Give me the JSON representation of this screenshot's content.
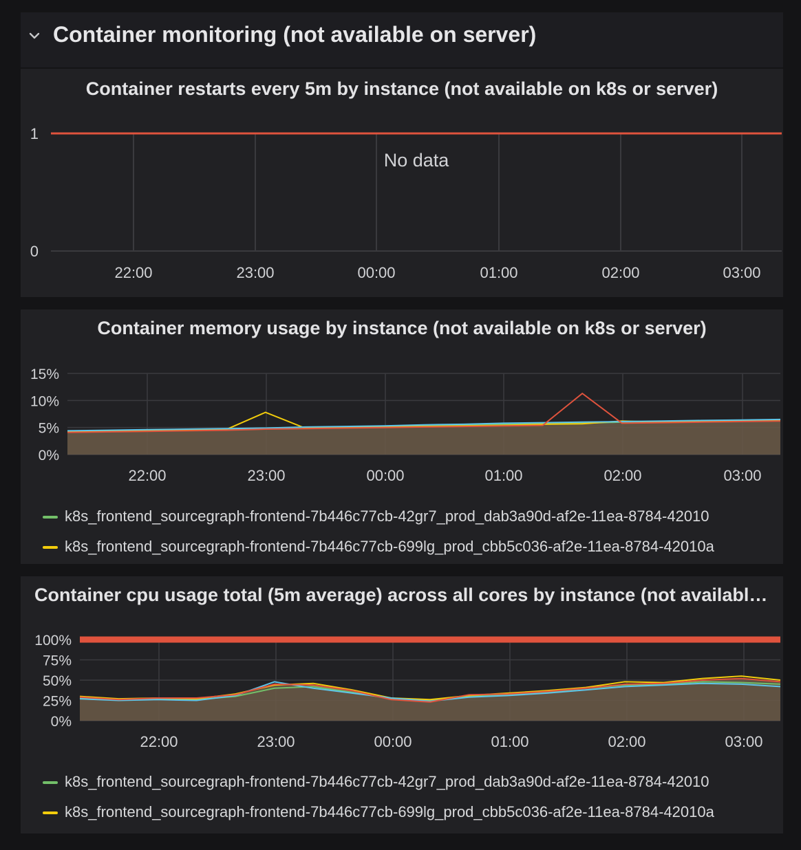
{
  "row": {
    "title": "Container monitoring (not available on server)",
    "collapse_icon": "chevron-down-icon"
  },
  "panels": [
    {
      "title": "Container restarts every 5m by instance (not available on k8s or server)",
      "no_data_label": "No data"
    },
    {
      "title": "Container memory usage by instance (not available on k8s or server)",
      "legend": [
        {
          "label": "k8s_frontend_sourcegraph-frontend-7b446c77cb-42gr7_prod_dab3a90d-af2e-11ea-8784-42010",
          "color": "#73bf69"
        },
        {
          "label": "k8s_frontend_sourcegraph-frontend-7b446c77cb-699lg_prod_cbb5c036-af2e-11ea-8784-42010a",
          "color": "#f2cc0c"
        }
      ]
    },
    {
      "title": "Container cpu usage total (5m average) across all cores by instance (not availabl…",
      "legend": [
        {
          "label": "k8s_frontend_sourcegraph-frontend-7b446c77cb-42gr7_prod_dab3a90d-af2e-11ea-8784-42010",
          "color": "#73bf69"
        },
        {
          "label": "k8s_frontend_sourcegraph-frontend-7b446c77cb-699lg_prod_cbb5c036-af2e-11ea-8784-42010a",
          "color": "#f2cc0c"
        }
      ]
    }
  ],
  "chart_data": [
    {
      "type": "line",
      "title": "Container restarts every 5m by instance (not available on k8s or server)",
      "x": [
        "22:00",
        "23:00",
        "00:00",
        "01:00",
        "02:00",
        "03:00"
      ],
      "yticks": [
        "0",
        "1"
      ],
      "ylim": [
        0,
        1
      ],
      "threshold": {
        "value": 1,
        "color": "#e0533d"
      },
      "series": [],
      "no_data": true,
      "grid": true,
      "colors": {
        "threshold": "#e0533d",
        "grid": "#3a3a3e"
      }
    },
    {
      "type": "area",
      "title": "Container memory usage by instance (not available on k8s or server)",
      "x": [
        "21:20",
        "21:40",
        "22:00",
        "22:20",
        "22:40",
        "23:00",
        "23:20",
        "23:40",
        "00:00",
        "00:20",
        "00:40",
        "01:00",
        "01:20",
        "01:40",
        "02:00",
        "02:20",
        "02:40",
        "03:00",
        "03:20"
      ],
      "xticks": [
        "22:00",
        "23:00",
        "00:00",
        "01:00",
        "02:00",
        "03:00"
      ],
      "yticks": [
        "0%",
        "5%",
        "10%",
        "15%"
      ],
      "ylim": [
        0,
        15
      ],
      "series": [
        {
          "name": "k8s_frontend_sourcegraph-frontend-7b446c77cb-42gr7_prod_dab3a90d-af2e-11ea-8784-42010",
          "color": "#73bf69",
          "values": [
            4.3,
            4.4,
            4.5,
            4.6,
            4.7,
            4.9,
            5.0,
            5.1,
            5.2,
            5.3,
            5.5,
            5.6,
            5.7,
            5.8,
            6.0,
            6.1,
            6.2,
            6.3,
            6.4
          ]
        },
        {
          "name": "k8s_frontend_sourcegraph-frontend-7b446c77cb-699lg_prod_cbb5c036-af2e-11ea-8784-42010a",
          "color": "#f2cc0c",
          "values": [
            4.2,
            4.3,
            4.4,
            4.5,
            4.6,
            7.8,
            4.9,
            5.0,
            5.1,
            5.2,
            5.3,
            5.4,
            5.6,
            5.7,
            6.2,
            6.0,
            6.1,
            6.2,
            6.3
          ]
        },
        {
          "name": "",
          "color": "#5ec4e8",
          "values": [
            4.4,
            4.5,
            4.6,
            4.7,
            4.8,
            4.9,
            5.1,
            5.2,
            5.3,
            5.5,
            5.6,
            5.8,
            5.9,
            6.0,
            6.1,
            6.2,
            6.3,
            6.4,
            6.5
          ]
        },
        {
          "name": "",
          "color": "#e0533d",
          "values": [
            4.1,
            4.2,
            4.3,
            4.4,
            4.5,
            4.7,
            4.8,
            4.9,
            5.0,
            5.1,
            5.2,
            5.3,
            5.4,
            11.3,
            5.8,
            5.9,
            6.0,
            6.1,
            6.2
          ]
        }
      ],
      "grid": true,
      "colors": {
        "fill": "#6b5a48",
        "grid": "#3a3a3e"
      }
    },
    {
      "type": "area",
      "title": "Container cpu usage total (5m average) across all cores by instance (not availabl…",
      "x": [
        "21:20",
        "21:40",
        "22:00",
        "22:20",
        "22:40",
        "23:00",
        "23:20",
        "23:40",
        "00:00",
        "00:20",
        "00:40",
        "01:00",
        "01:20",
        "01:40",
        "02:00",
        "02:20",
        "02:40",
        "03:00",
        "03:20"
      ],
      "xticks": [
        "22:00",
        "23:00",
        "00:00",
        "01:00",
        "02:00",
        "03:00"
      ],
      "yticks": [
        "0%",
        "25%",
        "50%",
        "75%",
        "100%"
      ],
      "ylim": [
        0,
        100
      ],
      "threshold": {
        "value": 100,
        "color": "#e0533d"
      },
      "series": [
        {
          "name": "k8s_frontend_sourcegraph-frontend-7b446c77cb-42gr7_prod_dab3a90d-af2e-11ea-8784-42010",
          "color": "#73bf69",
          "values": [
            28,
            26,
            27,
            26,
            30,
            40,
            42,
            35,
            27,
            25,
            30,
            32,
            35,
            40,
            44,
            45,
            48,
            47,
            45
          ]
        },
        {
          "name": "k8s_frontend_sourcegraph-frontend-7b446c77cb-699lg_prod_cbb5c036-af2e-11ea-8784-42010a",
          "color": "#f2cc0c",
          "values": [
            30,
            27,
            28,
            27,
            33,
            44,
            46,
            38,
            28,
            26,
            31,
            34,
            37,
            41,
            48,
            47,
            52,
            55,
            50
          ]
        },
        {
          "name": "",
          "color": "#5ec4e8",
          "values": [
            27,
            25,
            26,
            25,
            31,
            48,
            40,
            34,
            28,
            24,
            29,
            31,
            34,
            38,
            42,
            44,
            46,
            45,
            42
          ]
        },
        {
          "name": "",
          "color": "#e0533d",
          "values": [
            29,
            26,
            28,
            28,
            32,
            45,
            44,
            37,
            26,
            23,
            32,
            33,
            36,
            40,
            45,
            46,
            50,
            52,
            48
          ]
        }
      ],
      "grid": true,
      "colors": {
        "fill": "#6b5a48",
        "grid": "#3a3a3e"
      }
    }
  ]
}
